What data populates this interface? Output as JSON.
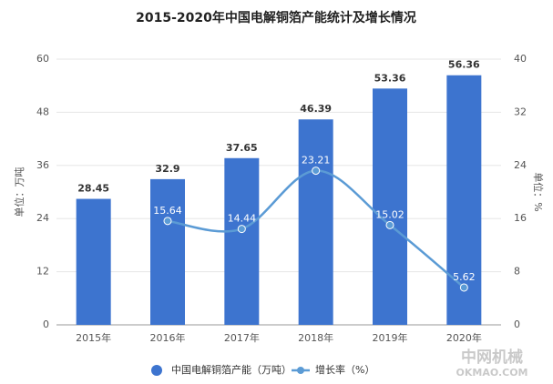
{
  "chart_data": {
    "type": "bar_line",
    "title": "2015-2020年中国电解铜箔产能统计及增长情况",
    "y_label": "单位：万吨",
    "y2_label": "单位：%",
    "categories": [
      "2015年",
      "2016年",
      "2017年",
      "2018年",
      "2019年",
      "2020年"
    ],
    "series": [
      {
        "name": "中国电解铜箔产能（万吨）",
        "type": "bar",
        "color": "#3d74cf",
        "values": [
          28.45,
          32.9,
          37.65,
          46.39,
          53.36,
          56.36
        ]
      },
      {
        "name": "增长率（%）",
        "type": "line",
        "axis": "y2",
        "color": "#5b9bd5",
        "values": [
          null,
          15.64,
          14.44,
          23.21,
          15.02,
          5.62
        ]
      }
    ],
    "ylim": [
      0,
      60
    ],
    "yticks": [
      0,
      12,
      24,
      36,
      48,
      60
    ],
    "y2lim": [
      0,
      40
    ],
    "y2ticks": [
      0,
      8,
      16,
      24,
      32,
      40
    ],
    "grid": true,
    "watermark": [
      "中网机械",
      "OKMAO.COM"
    ]
  }
}
